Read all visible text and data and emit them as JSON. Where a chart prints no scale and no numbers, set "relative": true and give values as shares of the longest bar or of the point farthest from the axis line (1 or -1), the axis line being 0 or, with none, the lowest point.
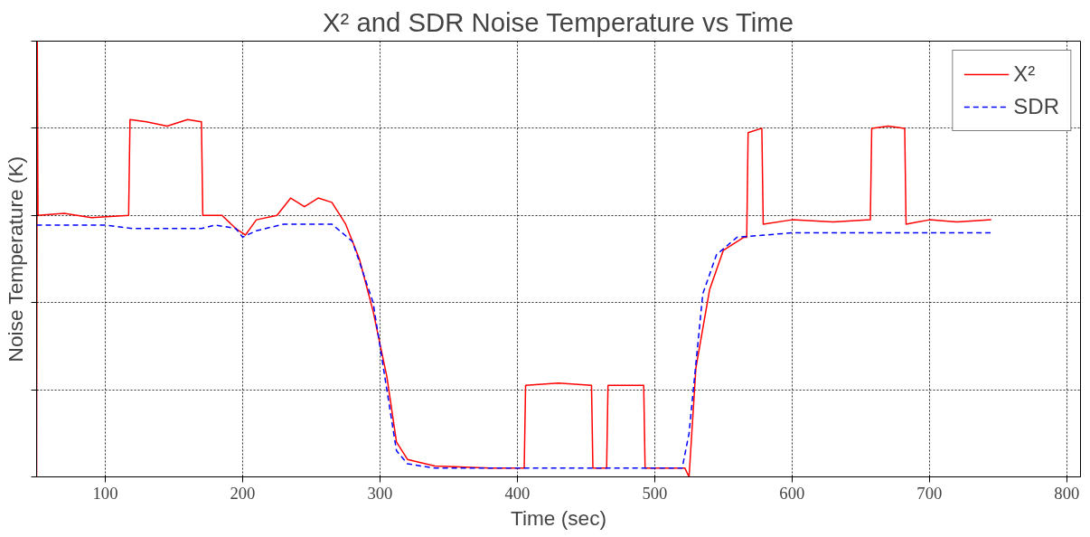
{
  "chart_data": {
    "type": "line",
    "title": "X² and SDR Noise Temperature vs Time",
    "xlabel": "Time (sec)",
    "ylabel": "Noise Temperature (K)",
    "relative": true,
    "xlim": [
      50,
      810
    ],
    "xticks": [
      100,
      200,
      300,
      400,
      500,
      600,
      700,
      800
    ],
    "grid": true,
    "legend": "top right",
    "tick_labels": "x",
    "series": [
      {
        "name": "X²",
        "color": "#ff0000",
        "line_style": "solid",
        "x": [
          50,
          50.5,
          51,
          70,
          90,
          117,
          118,
          130,
          145,
          160,
          170,
          171,
          185,
          195,
          202,
          210,
          225,
          235,
          245,
          255,
          265,
          275,
          285,
          295,
          305,
          312,
          320,
          340,
          380,
          405,
          406,
          430,
          454,
          455,
          465,
          466,
          480,
          492,
          493,
          522,
          525,
          530,
          540,
          550,
          565,
          567,
          568,
          578,
          579,
          600,
          630,
          657,
          658,
          670,
          682,
          683,
          700,
          720,
          745
        ],
        "values": [
          0.0,
          1.0,
          0.6,
          0.605,
          0.595,
          0.6,
          0.82,
          0.815,
          0.805,
          0.82,
          0.815,
          0.6,
          0.6,
          0.57,
          0.555,
          0.59,
          0.6,
          0.64,
          0.62,
          0.64,
          0.63,
          0.58,
          0.5,
          0.38,
          0.23,
          0.08,
          0.04,
          0.025,
          0.02,
          0.02,
          0.21,
          0.215,
          0.21,
          0.02,
          0.02,
          0.21,
          0.21,
          0.21,
          0.02,
          0.02,
          0.0,
          0.25,
          0.43,
          0.52,
          0.55,
          0.55,
          0.79,
          0.8,
          0.58,
          0.59,
          0.585,
          0.59,
          0.8,
          0.805,
          0.8,
          0.58,
          0.59,
          0.585,
          0.59
        ]
      },
      {
        "name": "SDR",
        "color": "#0000ff",
        "line_style": "dashed",
        "x": [
          50,
          100,
          120,
          150,
          170,
          180,
          195,
          200,
          210,
          230,
          265,
          280,
          295,
          305,
          312,
          320,
          340,
          400,
          450,
          520,
          525,
          535,
          545,
          560,
          600,
          700,
          745
        ],
        "values": [
          0.578,
          0.578,
          0.57,
          0.57,
          0.57,
          0.578,
          0.57,
          0.55,
          0.565,
          0.58,
          0.58,
          0.54,
          0.4,
          0.2,
          0.06,
          0.03,
          0.02,
          0.02,
          0.02,
          0.02,
          0.1,
          0.42,
          0.51,
          0.55,
          0.56,
          0.56,
          0.56
        ]
      }
    ]
  }
}
